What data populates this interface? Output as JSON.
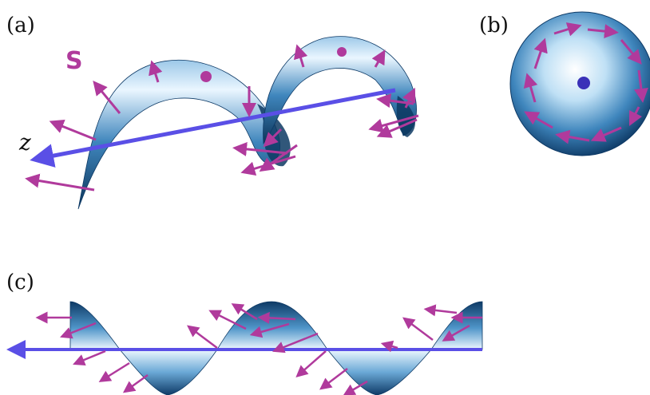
{
  "labels": {
    "panel_a": "(a)",
    "panel_b": "(b)",
    "panel_c": "(c)",
    "spin": "S",
    "axis": "z"
  },
  "colors": {
    "spin_arrow": "#b03a9c",
    "axis_arrow": "#5a4fe6",
    "surface_dark": "#0e3a66",
    "surface_mid": "#3f86bd",
    "surface_light": "#eaf6ff"
  }
}
